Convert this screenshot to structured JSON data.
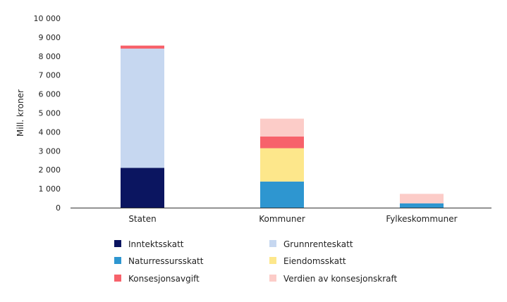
{
  "chart_data": {
    "type": "bar",
    "stacked": true,
    "title": "",
    "xlabel": "",
    "ylabel": "Mill. kroner",
    "ylim": [
      0,
      10000
    ],
    "yticks": [
      0,
      1000,
      2000,
      3000,
      4000,
      5000,
      6000,
      7000,
      8000,
      9000,
      10000
    ],
    "ytick_labels": [
      "0",
      "1 000",
      "2 000",
      "3 000",
      "4 000",
      "5 000",
      "6 000",
      "7 000",
      "8 000",
      "9 000",
      "10 000"
    ],
    "grid": false,
    "legend_position": "bottom",
    "categories": [
      "Staten",
      "Kommuner",
      "Fylkeskommuner"
    ],
    "series": [
      {
        "name": "Inntektsskatt",
        "color": "#0b1560",
        "values": [
          2100,
          0,
          0
        ]
      },
      {
        "name": "Naturressursskatt",
        "color": "#2e96d0",
        "values": [
          0,
          1380,
          230
        ]
      },
      {
        "name": "Konsesjonsavgift",
        "color": "#f7626b",
        "values": [
          160,
          620,
          0
        ]
      },
      {
        "name": "Grunnrenteskatt",
        "color": "#c6d7f0",
        "values": [
          6300,
          0,
          0
        ]
      },
      {
        "name": "Eiendomsskatt",
        "color": "#fde78b",
        "values": [
          0,
          1760,
          0
        ]
      },
      {
        "name": "Verdien av konsesjonskraft",
        "color": "#fcccc8",
        "values": [
          0,
          940,
          500
        ]
      }
    ],
    "stack_order": [
      "Inntektsskatt",
      "Naturressursskatt",
      "Eiendomsskatt",
      "Grunnrenteskatt",
      "Konsesjonsavgift",
      "Verdien av konsesjonskraft"
    ]
  }
}
